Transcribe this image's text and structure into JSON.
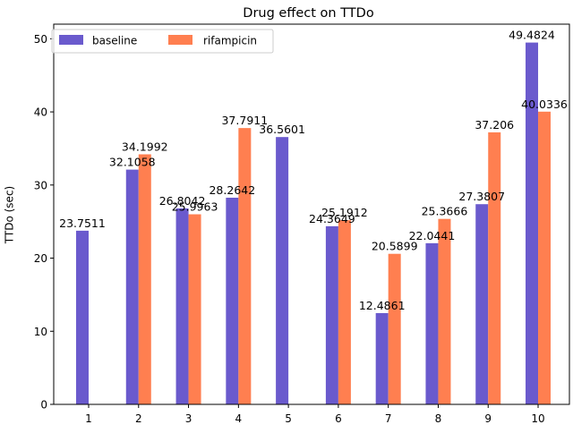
{
  "chart_data": {
    "type": "bar",
    "title": "Drug effect on TTDo",
    "xlabel": "",
    "ylabel": "TTDo (sec)",
    "categories": [
      "1",
      "2",
      "3",
      "4",
      "5",
      "6",
      "7",
      "8",
      "9",
      "10"
    ],
    "ylim": [
      0,
      52
    ],
    "yticks": [
      0,
      10,
      20,
      30,
      40,
      50
    ],
    "grid": false,
    "legend_position": "top-left",
    "series": [
      {
        "name": "baseline",
        "color": "#6a5acd",
        "values": [
          23.7511,
          32.1058,
          26.8042,
          28.2642,
          36.5601,
          24.3649,
          12.4861,
          22.0441,
          27.3807,
          49.4824
        ],
        "labels": [
          "23.7511",
          "32.1058",
          "26.8042",
          "28.2642",
          "36.5601",
          "24.3649",
          "12.4861",
          "22.0441",
          "27.3807",
          "49.4824"
        ]
      },
      {
        "name": "rifampicin",
        "color": "#ff7f50",
        "values": [
          null,
          34.1992,
          25.9963,
          37.7911,
          null,
          25.1912,
          20.5899,
          25.3666,
          37.206,
          40.0336
        ],
        "labels": [
          null,
          "34.1992",
          "25.9963",
          "37.7911",
          null,
          "25.1912",
          "20.5899",
          "25.3666",
          "37.206",
          "40.0336"
        ]
      }
    ]
  }
}
